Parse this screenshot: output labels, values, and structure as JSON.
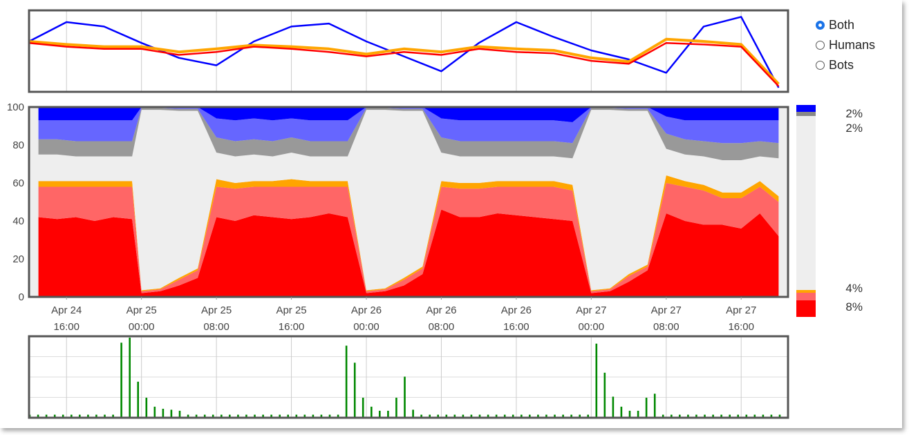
{
  "controls": {
    "selected": "Both",
    "options": [
      {
        "label": "Both",
        "checked": true
      },
      {
        "label": "Humans",
        "checked": false
      },
      {
        "label": "Bots",
        "checked": false
      }
    ]
  },
  "legend": {
    "labels": [
      {
        "text": "2%",
        "color": "#0000ff"
      },
      {
        "text": "2%",
        "color": "#eeeeee"
      },
      {
        "text": "4%",
        "color": "#ffa500"
      },
      {
        "text": "8%",
        "color": "#ff0000"
      }
    ]
  },
  "chart_data": [
    {
      "type": "line",
      "title": "",
      "x": [
        "2013-04-24 12:00",
        "2013-04-24 16:00",
        "2013-04-24 20:00",
        "2013-04-25 00:00",
        "2013-04-25 04:00",
        "2013-04-25 08:00",
        "2013-04-25 12:00",
        "2013-04-25 16:00",
        "2013-04-25 20:00",
        "2013-04-26 00:00",
        "2013-04-26 04:00",
        "2013-04-26 08:00",
        "2013-04-26 12:00",
        "2013-04-26 16:00",
        "2013-04-26 20:00",
        "2013-04-27 00:00",
        "2013-04-27 04:00",
        "2013-04-27 08:00",
        "2013-04-27 12:00",
        "2013-04-27 16:00",
        "2013-04-27 20:00"
      ],
      "series": [
        {
          "color": "#0000ff",
          "values": [
            62,
            88,
            82,
            60,
            40,
            30,
            62,
            82,
            86,
            62,
            42,
            22,
            60,
            88,
            68,
            50,
            38,
            20,
            82,
            95,
            0
          ]
        },
        {
          "color": "#ffa500",
          "values": [
            62,
            58,
            55,
            55,
            48,
            52,
            57,
            55,
            52,
            45,
            52,
            48,
            55,
            52,
            50,
            40,
            35,
            65,
            62,
            58,
            5
          ]
        },
        {
          "color": "#ff0000",
          "values": [
            60,
            55,
            52,
            52,
            44,
            48,
            55,
            52,
            48,
            42,
            48,
            44,
            52,
            48,
            46,
            36,
            32,
            60,
            58,
            55,
            2
          ]
        }
      ]
    },
    {
      "type": "area",
      "title": "",
      "ylim": [
        0,
        100
      ],
      "yticks": [
        0,
        20,
        40,
        60,
        80,
        100
      ],
      "xticks": [
        {
          "x": "2013-04-24 16:00",
          "l1": "Apr 24",
          "l2": "16:00"
        },
        {
          "x": "2013-04-25 00:00",
          "l1": "Apr 25",
          "l2": "00:00"
        },
        {
          "x": "2013-04-25 08:00",
          "l1": "Apr 25",
          "l2": "08:00"
        },
        {
          "x": "2013-04-25 16:00",
          "l1": "Apr 25",
          "l2": "16:00"
        },
        {
          "x": "2013-04-26 00:00",
          "l1": "Apr 26",
          "l2": "00:00"
        },
        {
          "x": "2013-04-26 08:00",
          "l1": "Apr 26",
          "l2": "08:00"
        },
        {
          "x": "2013-04-26 16:00",
          "l1": "Apr 26",
          "l2": "16:00"
        },
        {
          "x": "2013-04-27 00:00",
          "l1": "Apr 27",
          "l2": "00:00"
        },
        {
          "x": "2013-04-27 08:00",
          "l1": "Apr 27",
          "l2": "08:00"
        },
        {
          "x": "2013-04-27 16:00",
          "l1": "Apr 27",
          "l2": "16:00"
        }
      ],
      "x": [
        "2013-04-24 13:00",
        "2013-04-24 15:00",
        "2013-04-24 17:00",
        "2013-04-24 19:00",
        "2013-04-24 21:00",
        "2013-04-24 23:00",
        "2013-04-25 00:00",
        "2013-04-25 02:00",
        "2013-04-25 04:00",
        "2013-04-25 06:00",
        "2013-04-25 08:00",
        "2013-04-25 10:00",
        "2013-04-25 12:00",
        "2013-04-25 14:00",
        "2013-04-25 16:00",
        "2013-04-25 18:00",
        "2013-04-25 20:00",
        "2013-04-25 22:00",
        "2013-04-26 00:00",
        "2013-04-26 02:00",
        "2013-04-26 04:00",
        "2013-04-26 06:00",
        "2013-04-26 08:00",
        "2013-04-26 10:00",
        "2013-04-26 12:00",
        "2013-04-26 14:00",
        "2013-04-26 16:00",
        "2013-04-26 18:00",
        "2013-04-26 20:00",
        "2013-04-26 22:00",
        "2013-04-27 00:00",
        "2013-04-27 02:00",
        "2013-04-27 04:00",
        "2013-04-27 06:00",
        "2013-04-27 08:00",
        "2013-04-27 10:00",
        "2013-04-27 12:00",
        "2013-04-27 14:00",
        "2013-04-27 16:00",
        "2013-04-27 18:00",
        "2013-04-27 20:00"
      ],
      "series": [
        {
          "name": "",
          "color": "#ff0000",
          "values": [
            42,
            41,
            42,
            40,
            42,
            41,
            2,
            3,
            6,
            10,
            42,
            40,
            43,
            42,
            41,
            42,
            44,
            42,
            2,
            3,
            6,
            12,
            46,
            42,
            42,
            44,
            43,
            42,
            41,
            40,
            2,
            3,
            8,
            14,
            44,
            40,
            38,
            38,
            36,
            44,
            32
          ]
        },
        {
          "name": "",
          "color": "#ff6666",
          "values": [
            16,
            17,
            16,
            18,
            16,
            17,
            1,
            1,
            3,
            4,
            16,
            17,
            15,
            16,
            17,
            16,
            14,
            16,
            1,
            1,
            3,
            3,
            12,
            15,
            15,
            14,
            15,
            16,
            17,
            16,
            1,
            1,
            3,
            2,
            16,
            18,
            18,
            14,
            16,
            14,
            18
          ]
        },
        {
          "name": "",
          "color": "#ffa500",
          "values": [
            3,
            3,
            3,
            3,
            3,
            3,
            0.5,
            0.5,
            1,
            1,
            4,
            3,
            3,
            3,
            4,
            3,
            3,
            3,
            0.5,
            0.5,
            1,
            1,
            3,
            3,
            3,
            3,
            3,
            3,
            3,
            3,
            0.5,
            0.5,
            1,
            1,
            4,
            3,
            3,
            3,
            3,
            3,
            3
          ]
        },
        {
          "name": "",
          "color": "#eeeeee",
          "values": [
            14,
            14,
            13,
            13,
            13,
            13,
            95,
            94,
            88,
            83,
            14,
            14,
            14,
            13,
            14,
            13,
            13,
            13,
            95,
            94,
            88,
            82,
            15,
            14,
            14,
            13,
            13,
            13,
            13,
            14,
            95,
            94,
            86,
            81,
            14,
            14,
            15,
            17,
            17,
            13,
            20
          ]
        },
        {
          "name": "",
          "color": "#999999",
          "values": [
            8,
            8,
            8,
            8,
            8,
            8,
            1,
            1,
            1,
            1,
            8,
            8,
            8,
            8,
            8,
            8,
            8,
            8,
            1,
            1,
            1,
            1,
            8,
            8,
            8,
            8,
            8,
            8,
            8,
            8,
            1,
            1,
            1,
            1,
            8,
            8,
            8,
            9,
            9,
            8,
            8
          ]
        },
        {
          "name": "",
          "color": "#6666ff",
          "values": [
            10,
            10,
            11,
            11,
            11,
            11,
            0.5,
            0.5,
            1,
            1,
            10,
            11,
            11,
            11,
            10,
            11,
            11,
            11,
            0.5,
            0.5,
            1,
            1,
            10,
            11,
            11,
            11,
            11,
            11,
            11,
            11,
            0.5,
            0.5,
            1,
            1,
            9,
            10,
            11,
            12,
            12,
            11,
            12
          ]
        },
        {
          "name": "",
          "color": "#0000ff",
          "values": [
            7,
            7,
            7,
            7,
            7,
            7,
            0,
            0,
            0,
            0,
            6,
            7,
            6,
            7,
            6,
            7,
            7,
            7,
            0,
            0,
            0,
            0,
            6,
            7,
            7,
            7,
            7,
            7,
            7,
            8,
            0,
            0,
            0,
            0,
            5,
            7,
            7,
            7,
            7,
            7,
            7
          ]
        }
      ]
    },
    {
      "type": "bar",
      "title": "",
      "color": "#008800",
      "values": [
        3,
        3,
        3,
        3,
        3,
        3,
        3,
        3,
        3,
        3,
        3,
        75,
        80,
        36,
        20,
        11,
        9,
        8,
        7,
        3,
        3,
        3,
        3,
        3,
        3,
        3,
        3,
        3,
        3,
        3,
        3,
        3,
        3,
        3,
        3,
        3,
        3,
        3,
        72,
        55,
        20,
        11,
        7,
        7,
        20,
        41,
        8,
        3,
        3,
        3,
        3,
        3,
        3,
        3,
        3,
        3,
        3,
        3,
        3,
        3,
        3,
        3,
        3,
        3,
        3,
        3,
        3,
        3,
        74,
        45,
        21,
        11,
        7,
        7,
        20,
        24,
        3,
        3,
        3,
        3,
        3,
        3,
        3,
        3,
        3,
        3,
        3,
        3,
        3,
        3,
        3
      ]
    }
  ]
}
